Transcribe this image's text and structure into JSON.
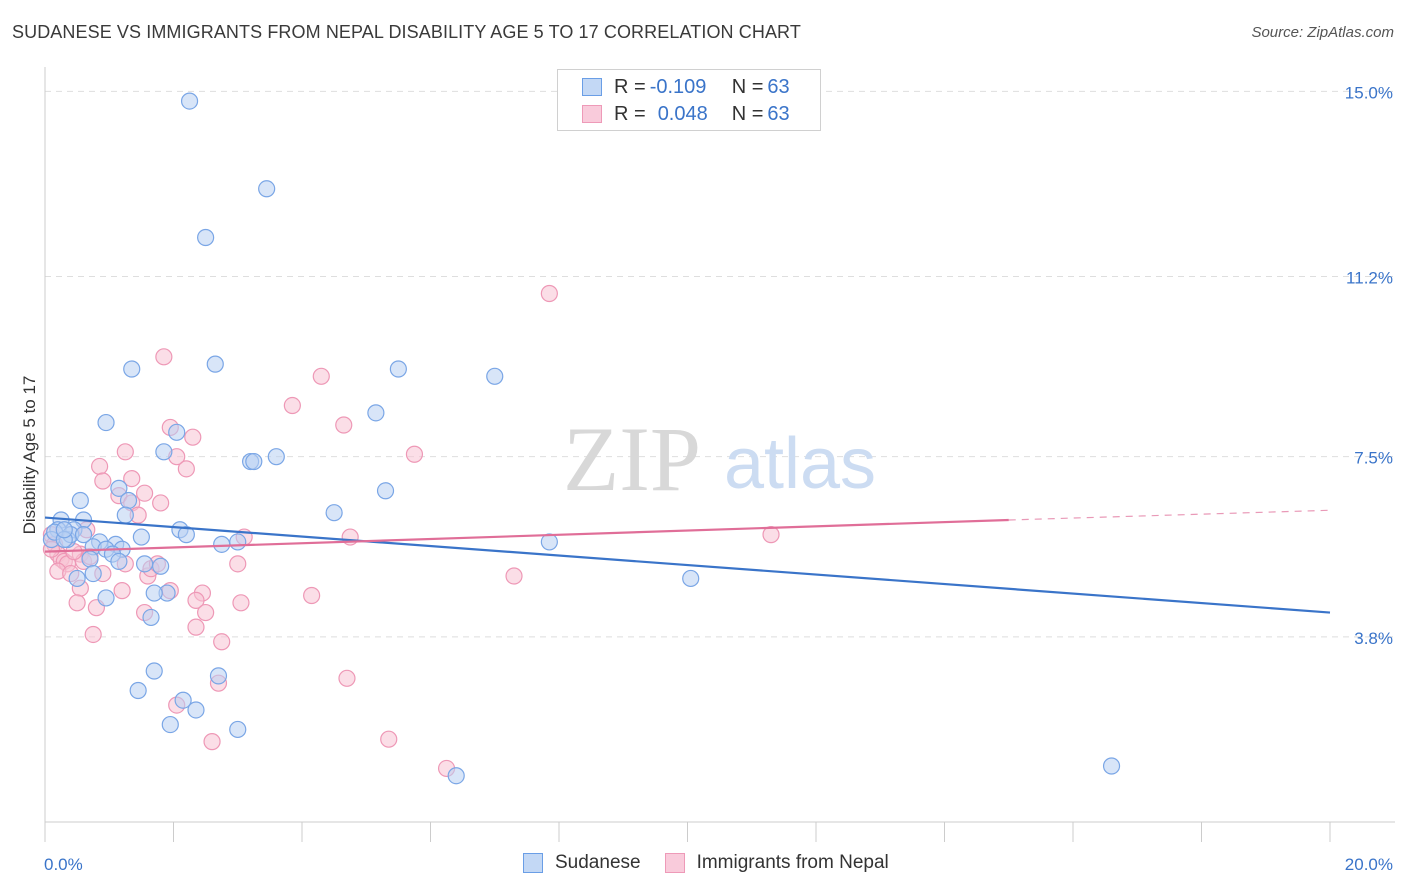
{
  "title": "SUDANESE VS IMMIGRANTS FROM NEPAL DISABILITY AGE 5 TO 17 CORRELATION CHART",
  "source": "Source: ZipAtlas.com",
  "watermark": {
    "zip": "ZIP",
    "atlas": "atlas"
  },
  "legend": {
    "row1": {
      "r_label": "R = ",
      "r_value": "-0.109",
      "n_label": "N = ",
      "n_value": "63"
    },
    "row2": {
      "r_label": "R = ",
      "r_value": "0.048",
      "n_label": "N = ",
      "n_value": "63"
    }
  },
  "bottom_legend": {
    "s1": "Sudanese",
    "s2": "Immigrants from Nepal"
  },
  "colors": {
    "blue": "#3a74c9",
    "blue_fill": "#b8d0f3",
    "pink": "#e06e98",
    "pink_fill": "#f7c2d3",
    "grid": "#dedede"
  },
  "chart_data": {
    "type": "scatter",
    "title": "SUDANESE VS IMMIGRANTS FROM NEPAL DISABILITY AGE 5 TO 17 CORRELATION CHART",
    "xlabel": "",
    "ylabel": "Disability Age 5 to 17",
    "xlim": [
      0,
      20
    ],
    "ylim": [
      0,
      15.5
    ],
    "x_tick_labels": [
      "0.0%",
      "20.0%"
    ],
    "y_ticks": [
      3.8,
      7.5,
      11.2,
      15.0
    ],
    "y_tick_labels": [
      "3.8%",
      "7.5%",
      "11.2%",
      "15.0%"
    ],
    "grid": true,
    "legend_position": "top-center",
    "series": [
      {
        "name": "Sudanese",
        "r": -0.109,
        "n": 63,
        "trend": {
          "x": [
            0,
            20
          ],
          "y": [
            6.25,
            4.3
          ]
        },
        "points": [
          [
            2.25,
            14.8
          ],
          [
            3.45,
            13.0
          ],
          [
            2.5,
            12.0
          ],
          [
            1.35,
            9.3
          ],
          [
            2.65,
            9.4
          ],
          [
            5.5,
            9.3
          ],
          [
            7.0,
            9.15
          ],
          [
            5.15,
            8.4
          ],
          [
            0.95,
            8.2
          ],
          [
            2.05,
            8.0
          ],
          [
            1.85,
            7.6
          ],
          [
            3.6,
            7.5
          ],
          [
            3.2,
            7.4
          ],
          [
            3.25,
            7.4
          ],
          [
            5.3,
            6.8
          ],
          [
            1.15,
            6.85
          ],
          [
            0.55,
            6.6
          ],
          [
            1.3,
            6.6
          ],
          [
            1.25,
            6.3
          ],
          [
            4.5,
            6.35
          ],
          [
            0.25,
            6.2
          ],
          [
            0.6,
            6.2
          ],
          [
            0.2,
            6.0
          ],
          [
            0.45,
            6.0
          ],
          [
            2.1,
            6.0
          ],
          [
            0.35,
            5.8
          ],
          [
            0.4,
            5.9
          ],
          [
            2.2,
            5.9
          ],
          [
            1.5,
            5.85
          ],
          [
            0.1,
            5.8
          ],
          [
            0.15,
            5.95
          ],
          [
            0.85,
            5.75
          ],
          [
            1.1,
            5.7
          ],
          [
            0.75,
            5.65
          ],
          [
            0.95,
            5.6
          ],
          [
            1.2,
            5.6
          ],
          [
            3.0,
            5.75
          ],
          [
            2.75,
            5.7
          ],
          [
            7.85,
            5.75
          ],
          [
            0.7,
            5.4
          ],
          [
            1.05,
            5.5
          ],
          [
            1.55,
            5.3
          ],
          [
            1.8,
            5.25
          ],
          [
            1.15,
            5.35
          ],
          [
            0.75,
            5.1
          ],
          [
            0.5,
            5.0
          ],
          [
            1.9,
            4.7
          ],
          [
            1.7,
            4.7
          ],
          [
            0.95,
            4.6
          ],
          [
            1.65,
            4.2
          ],
          [
            10.05,
            5.0
          ],
          [
            1.7,
            3.1
          ],
          [
            2.7,
            3.0
          ],
          [
            1.45,
            2.7
          ],
          [
            2.15,
            2.5
          ],
          [
            2.35,
            2.3
          ],
          [
            1.95,
            2.0
          ],
          [
            3.0,
            1.9
          ],
          [
            6.4,
            0.95
          ],
          [
            16.6,
            1.15
          ],
          [
            0.3,
            5.8
          ],
          [
            0.6,
            5.9
          ],
          [
            0.3,
            6.0
          ]
        ]
      },
      {
        "name": "Immigrants from Nepal",
        "r": 0.048,
        "n": 63,
        "trend": {
          "x": [
            0,
            15
          ],
          "y": [
            5.55,
            6.2
          ]
        },
        "trend_dashed_to": {
          "x": 20,
          "y": 6.4
        },
        "points": [
          [
            7.85,
            10.85
          ],
          [
            1.85,
            9.55
          ],
          [
            4.3,
            9.15
          ],
          [
            3.85,
            8.55
          ],
          [
            4.65,
            8.15
          ],
          [
            1.95,
            8.1
          ],
          [
            2.3,
            7.9
          ],
          [
            2.05,
            7.5
          ],
          [
            1.25,
            7.6
          ],
          [
            5.75,
            7.55
          ],
          [
            2.2,
            7.25
          ],
          [
            0.85,
            7.3
          ],
          [
            0.9,
            7.0
          ],
          [
            1.35,
            7.05
          ],
          [
            1.55,
            6.75
          ],
          [
            1.15,
            6.7
          ],
          [
            1.35,
            6.55
          ],
          [
            1.8,
            6.55
          ],
          [
            0.65,
            6.0
          ],
          [
            1.45,
            6.3
          ],
          [
            3.1,
            5.85
          ],
          [
            4.75,
            5.85
          ],
          [
            11.3,
            5.9
          ],
          [
            0.1,
            5.9
          ],
          [
            0.15,
            5.7
          ],
          [
            0.2,
            5.5
          ],
          [
            0.25,
            5.4
          ],
          [
            0.3,
            5.35
          ],
          [
            0.35,
            5.3
          ],
          [
            0.2,
            5.15
          ],
          [
            0.4,
            5.1
          ],
          [
            0.55,
            5.5
          ],
          [
            0.6,
            5.35
          ],
          [
            0.9,
            5.1
          ],
          [
            1.25,
            5.3
          ],
          [
            1.6,
            5.05
          ],
          [
            1.65,
            5.2
          ],
          [
            1.75,
            5.3
          ],
          [
            3.0,
            5.3
          ],
          [
            7.3,
            5.05
          ],
          [
            0.55,
            4.8
          ],
          [
            1.2,
            4.75
          ],
          [
            1.95,
            4.75
          ],
          [
            2.45,
            4.7
          ],
          [
            2.35,
            4.55
          ],
          [
            3.05,
            4.5
          ],
          [
            4.15,
            4.65
          ],
          [
            0.5,
            4.5
          ],
          [
            0.8,
            4.4
          ],
          [
            1.55,
            4.3
          ],
          [
            2.5,
            4.3
          ],
          [
            2.35,
            4.0
          ],
          [
            0.75,
            3.85
          ],
          [
            2.75,
            3.7
          ],
          [
            4.7,
            2.95
          ],
          [
            2.7,
            2.85
          ],
          [
            2.05,
            2.4
          ],
          [
            5.35,
            1.7
          ],
          [
            2.6,
            1.65
          ],
          [
            6.25,
            1.1
          ],
          [
            0.1,
            5.6
          ],
          [
            0.45,
            5.55
          ],
          [
            0.7,
            5.45
          ]
        ]
      }
    ]
  }
}
